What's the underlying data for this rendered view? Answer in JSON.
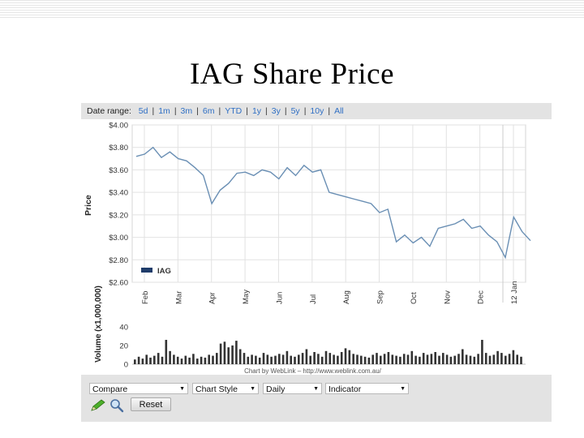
{
  "slide": {
    "title": "IAG Share Price"
  },
  "range_bar": {
    "label": "Date range:",
    "options": [
      "5d",
      "1m",
      "3m",
      "6m",
      "YTD",
      "1y",
      "3y",
      "5y",
      "10y",
      "All"
    ]
  },
  "controls": {
    "compare": "Compare",
    "chart_style": "Chart Style",
    "period": "Daily",
    "indicator": "Indicator",
    "reset": "Reset"
  },
  "icons": {
    "pencil": "pencil-icon",
    "magnifier": "zoom-icon"
  },
  "colors": {
    "line": "#6a8fb4",
    "legend_swatch": "#1f3c6a",
    "link": "#2f6fc4",
    "volume": "#333333",
    "cursor": "#cccccc"
  },
  "chart_data": [
    {
      "type": "line",
      "title": "",
      "xlabel": "",
      "ylabel": "Price",
      "ylim": [
        2.6,
        4.0
      ],
      "yticks": [
        "$4.00",
        "$3.80",
        "$3.60",
        "$3.40",
        "$3.20",
        "$3.00",
        "$2.80",
        "$2.60"
      ],
      "ytick_values": [
        4.0,
        3.8,
        3.6,
        3.4,
        3.2,
        3.0,
        2.8,
        2.6
      ],
      "categories": [
        "Feb",
        "Mar",
        "Apr",
        "May",
        "Jun",
        "Jul",
        "Aug",
        "Sep",
        "Oct",
        "Nov",
        "Dec",
        "12 Jan"
      ],
      "grid": true,
      "legend_position": "bottom-left",
      "series": [
        {
          "name": "IAG",
          "x": [
            0,
            0.25,
            0.5,
            0.75,
            1.0,
            1.25,
            1.5,
            1.75,
            2.0,
            2.25,
            2.5,
            2.75,
            3.0,
            3.25,
            3.5,
            3.75,
            4.0,
            4.25,
            4.5,
            4.75,
            5.0,
            5.25,
            5.5,
            5.75,
            6.0,
            6.25,
            6.5,
            6.75,
            7.0,
            7.25,
            7.5,
            7.75,
            8.0,
            8.25,
            8.5,
            8.75,
            9.0,
            9.25,
            9.5,
            9.75,
            10.0,
            10.25,
            10.5,
            10.75,
            11.0,
            11.25,
            11.5,
            11.75
          ],
          "values": [
            3.72,
            3.74,
            3.8,
            3.71,
            3.76,
            3.7,
            3.68,
            3.62,
            3.55,
            3.3,
            3.42,
            3.48,
            3.57,
            3.58,
            3.55,
            3.6,
            3.58,
            3.52,
            3.62,
            3.55,
            3.64,
            3.58,
            3.6,
            3.4,
            3.38,
            3.36,
            3.34,
            3.32,
            3.3,
            3.22,
            3.25,
            2.96,
            3.02,
            2.95,
            3.0,
            2.92,
            3.08,
            3.1,
            3.12,
            3.16,
            3.08,
            3.1,
            3.02,
            2.96,
            2.82,
            3.18,
            3.05,
            2.97
          ]
        }
      ]
    },
    {
      "type": "bar",
      "title": "",
      "ylabel": "Volume (x1,000,000)",
      "ylim": [
        0,
        45
      ],
      "yticks": [
        "40",
        "20",
        "0"
      ],
      "ytick_values": [
        40,
        20,
        0
      ],
      "series": [
        {
          "name": "Volume",
          "values": [
            5,
            8,
            6,
            10,
            7,
            9,
            12,
            8,
            26,
            14,
            10,
            8,
            6,
            9,
            7,
            11,
            6,
            8,
            7,
            10,
            9,
            12,
            22,
            24,
            18,
            20,
            25,
            16,
            12,
            8,
            10,
            9,
            7,
            12,
            10,
            8,
            9,
            11,
            10,
            14,
            9,
            8,
            10,
            12,
            16,
            9,
            13,
            11,
            8,
            14,
            12,
            10,
            9,
            13,
            17,
            15,
            11,
            10,
            9,
            8,
            7,
            10,
            12,
            9,
            11,
            13,
            10,
            9,
            8,
            11,
            10,
            14,
            9,
            8,
            12,
            10,
            11,
            13,
            9,
            12,
            10,
            8,
            9,
            11,
            16,
            10,
            9,
            8,
            11,
            26,
            12,
            9,
            10,
            14,
            12,
            9,
            11,
            15,
            10,
            8
          ]
        }
      ]
    }
  ],
  "credit": "Chart by WebLink – http://www.weblink.com.au/"
}
